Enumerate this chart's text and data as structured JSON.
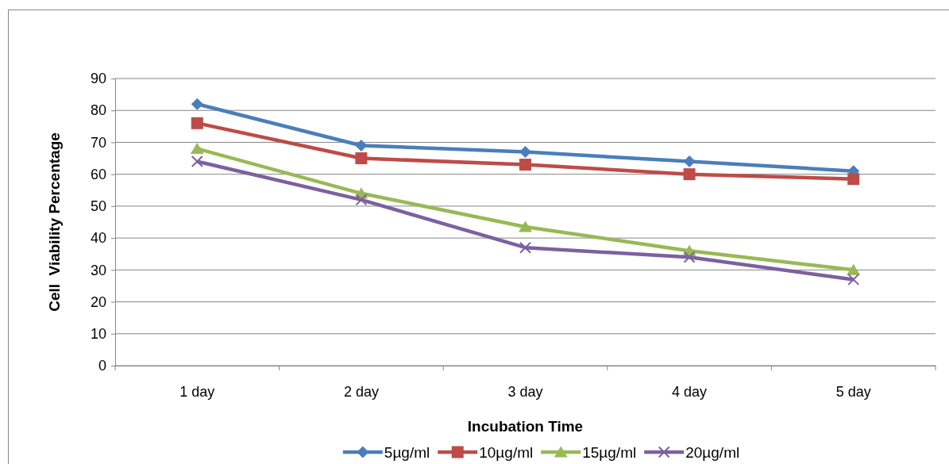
{
  "chart_data": {
    "type": "line",
    "xlabel": "Incubation Time",
    "ylabel": "Cell  Viability Percentage",
    "categories": [
      "1 day",
      "2 day",
      "3 day",
      "4 day",
      "5 day"
    ],
    "ylim": [
      0,
      90
    ],
    "yticks": [
      0,
      10,
      20,
      30,
      40,
      50,
      60,
      70,
      80,
      90
    ],
    "grid": "y",
    "legend": "bottom",
    "line_style": "solid",
    "series": [
      {
        "name": "5µg/ml",
        "color": "#4a7ebb",
        "marker": "diamond",
        "values": [
          82,
          69,
          67,
          64,
          61
        ]
      },
      {
        "name": "10µg/ml",
        "color": "#be4b48",
        "marker": "square",
        "values": [
          76,
          65,
          63,
          60,
          58.5
        ]
      },
      {
        "name": "15µg/ml",
        "color": "#98b954",
        "marker": "triangle",
        "values": [
          68,
          54,
          43.5,
          36,
          30
        ]
      },
      {
        "name": "20µg/ml",
        "color": "#7d60a0",
        "marker": "cross",
        "values": [
          64,
          52,
          37,
          34,
          27
        ]
      }
    ]
  }
}
